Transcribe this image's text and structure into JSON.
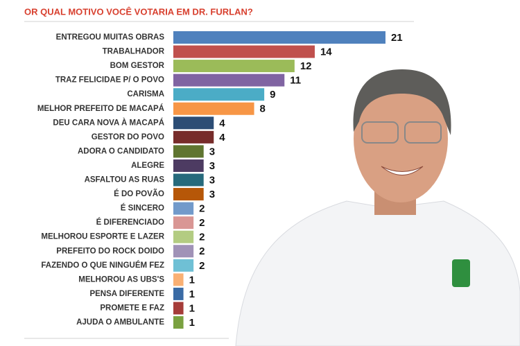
{
  "chart_data": {
    "type": "hbar",
    "title": "OR QUAL MOTIVO VOCÊ VOTARIA EM DR. FURLAN?",
    "categories": [
      "ENTREGOU MUITAS OBRAS",
      "TRABALHADOR",
      "BOM GESTOR",
      "TRAZ FELICIDAE P/ O POVO",
      "CARISMA",
      "MELHOR PREFEITO DE MACAPÁ",
      "DEU CARA NOVA À MACAPÁ",
      "GESTOR DO POVO",
      "ADORA O CANDIDATO",
      "ALEGRE",
      "ASFALTOU AS RUAS",
      "É DO POVÃO",
      "É SINCERO",
      "É DIFERENCIADO",
      "MELHOROU ESPORTE E LAZER",
      "PREFEITO DO ROCK DOIDO",
      "FAZENDO O QUE NINGUÉM FEZ",
      "MELHOROU AS UBS'S",
      "PENSA DIFERENTE",
      "PROMETE E FAZ",
      "AJUDA O AMBULANTE"
    ],
    "values": [
      21,
      14,
      12,
      11,
      9,
      8,
      4,
      4,
      3,
      3,
      3,
      3,
      2,
      2,
      2,
      2,
      2,
      1,
      1,
      1,
      1
    ],
    "colors": [
      "#4f81bd",
      "#c0504d",
      "#9bbb59",
      "#8064a2",
      "#4bacc6",
      "#f79646",
      "#2c4d75",
      "#772c2a",
      "#5f7530",
      "#4d3b62",
      "#276a7c",
      "#b65708",
      "#729aca",
      "#d99694",
      "#b3cc82",
      "#a092b7",
      "#6fc0d5",
      "#f9b074",
      "#3a6ba5",
      "#a53c39",
      "#7aa140"
    ]
  }
}
